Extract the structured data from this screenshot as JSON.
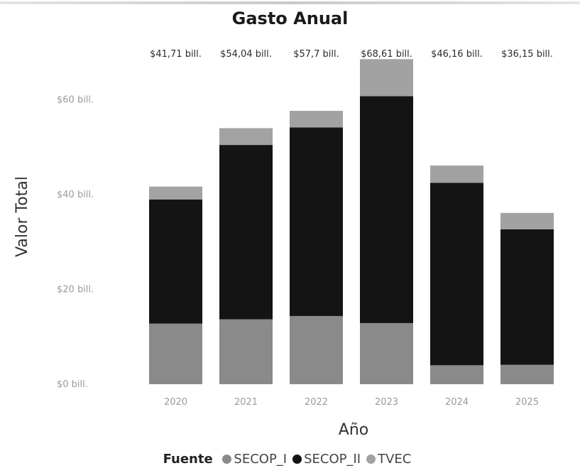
{
  "chart_data": {
    "type": "bar",
    "stacked": true,
    "title": "Gasto Anual",
    "xlabel": "Año",
    "ylabel": "Valor Total",
    "categories": [
      "2020",
      "2021",
      "2022",
      "2023",
      "2024",
      "2025"
    ],
    "series": [
      {
        "name": "SECOP_I",
        "color": "#8a8a8a",
        "values": [
          12.8,
          13.7,
          14.4,
          12.9,
          4.0,
          4.1
        ]
      },
      {
        "name": "SECOP_II",
        "color": "#141414",
        "values": [
          26.2,
          36.8,
          39.8,
          47.9,
          38.5,
          28.6
        ]
      },
      {
        "name": "TVEC",
        "color": "#a2a2a2",
        "values": [
          2.71,
          3.54,
          3.5,
          7.81,
          3.66,
          3.45
        ]
      }
    ],
    "totals_labels": [
      "$41,71 bill.",
      "$54,04 bill.",
      "$57,7 bill.",
      "$68,61 bill.",
      "$46,16 bill.",
      "$36,15 bill."
    ],
    "y_ticks": [
      0,
      20,
      40,
      60
    ],
    "y_tick_labels": [
      "$0 bill.",
      "$20 bill.",
      "$40 bill.",
      "$60 bill."
    ],
    "ylim": [
      0,
      70
    ],
    "grid": false,
    "legend": {
      "title": "Fuente",
      "position": "bottom"
    }
  }
}
